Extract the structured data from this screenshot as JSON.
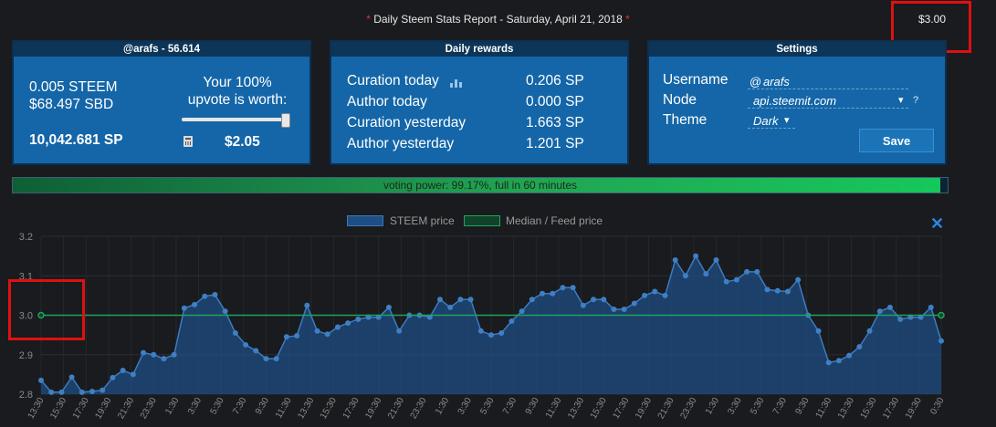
{
  "header": {
    "star_left": "*",
    "title": " Daily Steem Stats Report - Saturday, April 21, 2018 ",
    "star_right": "*",
    "top_right_value": "$3.00"
  },
  "account_panel": {
    "title": "@arafs - 56.614",
    "steem": "0.005 STEEM",
    "sbd": "$68.497 SBD",
    "sp": "10,042.681 SP",
    "upvote_line1": "Your 100%",
    "upvote_line2": "upvote is worth:",
    "upvote_value": "$2.05",
    "slider_percent": 100
  },
  "rewards_panel": {
    "title": "Daily rewards",
    "rows": [
      {
        "label": "Curation today",
        "value": "0.206 SP"
      },
      {
        "label": "Author today",
        "value": "0.000 SP"
      },
      {
        "label": "Curation yesterday",
        "value": "1.663 SP"
      },
      {
        "label": "Author yesterday",
        "value": "1.201 SP"
      }
    ]
  },
  "settings_panel": {
    "title": "Settings",
    "username_label": "Username",
    "username_prefix": "@",
    "username_value": "arafs",
    "node_label": "Node",
    "node_value": "api.steemit.com",
    "node_caret": "▾",
    "help": "?",
    "theme_label": "Theme",
    "theme_value": "Dark",
    "theme_caret": "▾",
    "save_label": "Save"
  },
  "voting_power": {
    "label": "voting power: 99.17%, full in 60 minutes",
    "percent": 99.17
  },
  "colors": {
    "steem_series": "#1d4e84",
    "median_series": "#1fa35c",
    "panel_bg": "#1466a8",
    "highlight": "#e01010"
  },
  "close_icon": "✕",
  "chart_data": {
    "type": "area",
    "legend_position": "top-center",
    "ylim": [
      2.8,
      3.2
    ],
    "yticks": [
      "2.8",
      "2.9",
      "3.0",
      "3.1",
      "3.2"
    ],
    "x_tick_labels": [
      "13:30",
      "15:30",
      "17:30",
      "19:30",
      "21:30",
      "23:30",
      "1:30",
      "3:30",
      "5:30",
      "7:30",
      "9:30",
      "11:30",
      "13:30",
      "15:30",
      "17:30",
      "19:30",
      "21:30",
      "23:30",
      "1:30",
      "3:30",
      "5:30",
      "7:30",
      "9:30",
      "11:30",
      "13:30",
      "15:30",
      "17:30",
      "19:30",
      "21:30",
      "23:30",
      "1:30",
      "3:30",
      "5:30",
      "7:30",
      "9:30",
      "11:30",
      "13:30",
      "15:30",
      "17:30",
      "19:30",
      "0:30"
    ],
    "series": [
      {
        "name": "STEEM price",
        "values": [
          2.835,
          2.805,
          2.805,
          2.843,
          2.805,
          2.807,
          2.81,
          2.842,
          2.86,
          2.85,
          2.905,
          2.9,
          2.89,
          2.9,
          3.018,
          3.027,
          3.048,
          3.052,
          3.01,
          2.955,
          2.925,
          2.91,
          2.89,
          2.89,
          2.945,
          2.948,
          3.025,
          2.96,
          2.952,
          2.97,
          2.98,
          2.99,
          2.995,
          2.995,
          3.02,
          2.96,
          3.0,
          3.0,
          2.995,
          3.04,
          3.02,
          3.04,
          3.04,
          2.96,
          2.95,
          2.955,
          2.985,
          3.01,
          3.04,
          3.055,
          3.055,
          3.07,
          3.07,
          3.025,
          3.04,
          3.04,
          3.015,
          3.015,
          3.03,
          3.05,
          3.06,
          3.05,
          3.14,
          3.1,
          3.15,
          3.105,
          3.14,
          3.085,
          3.09,
          3.11,
          3.11,
          3.065,
          3.062,
          3.06,
          3.09,
          3.0,
          2.96,
          2.88,
          2.885,
          2.898,
          2.92,
          2.96,
          3.01,
          3.02,
          2.99,
          2.995,
          2.995,
          3.02,
          2.935
        ]
      },
      {
        "name": "Median / Feed price",
        "values": [
          3.0,
          3.0
        ]
      }
    ]
  }
}
